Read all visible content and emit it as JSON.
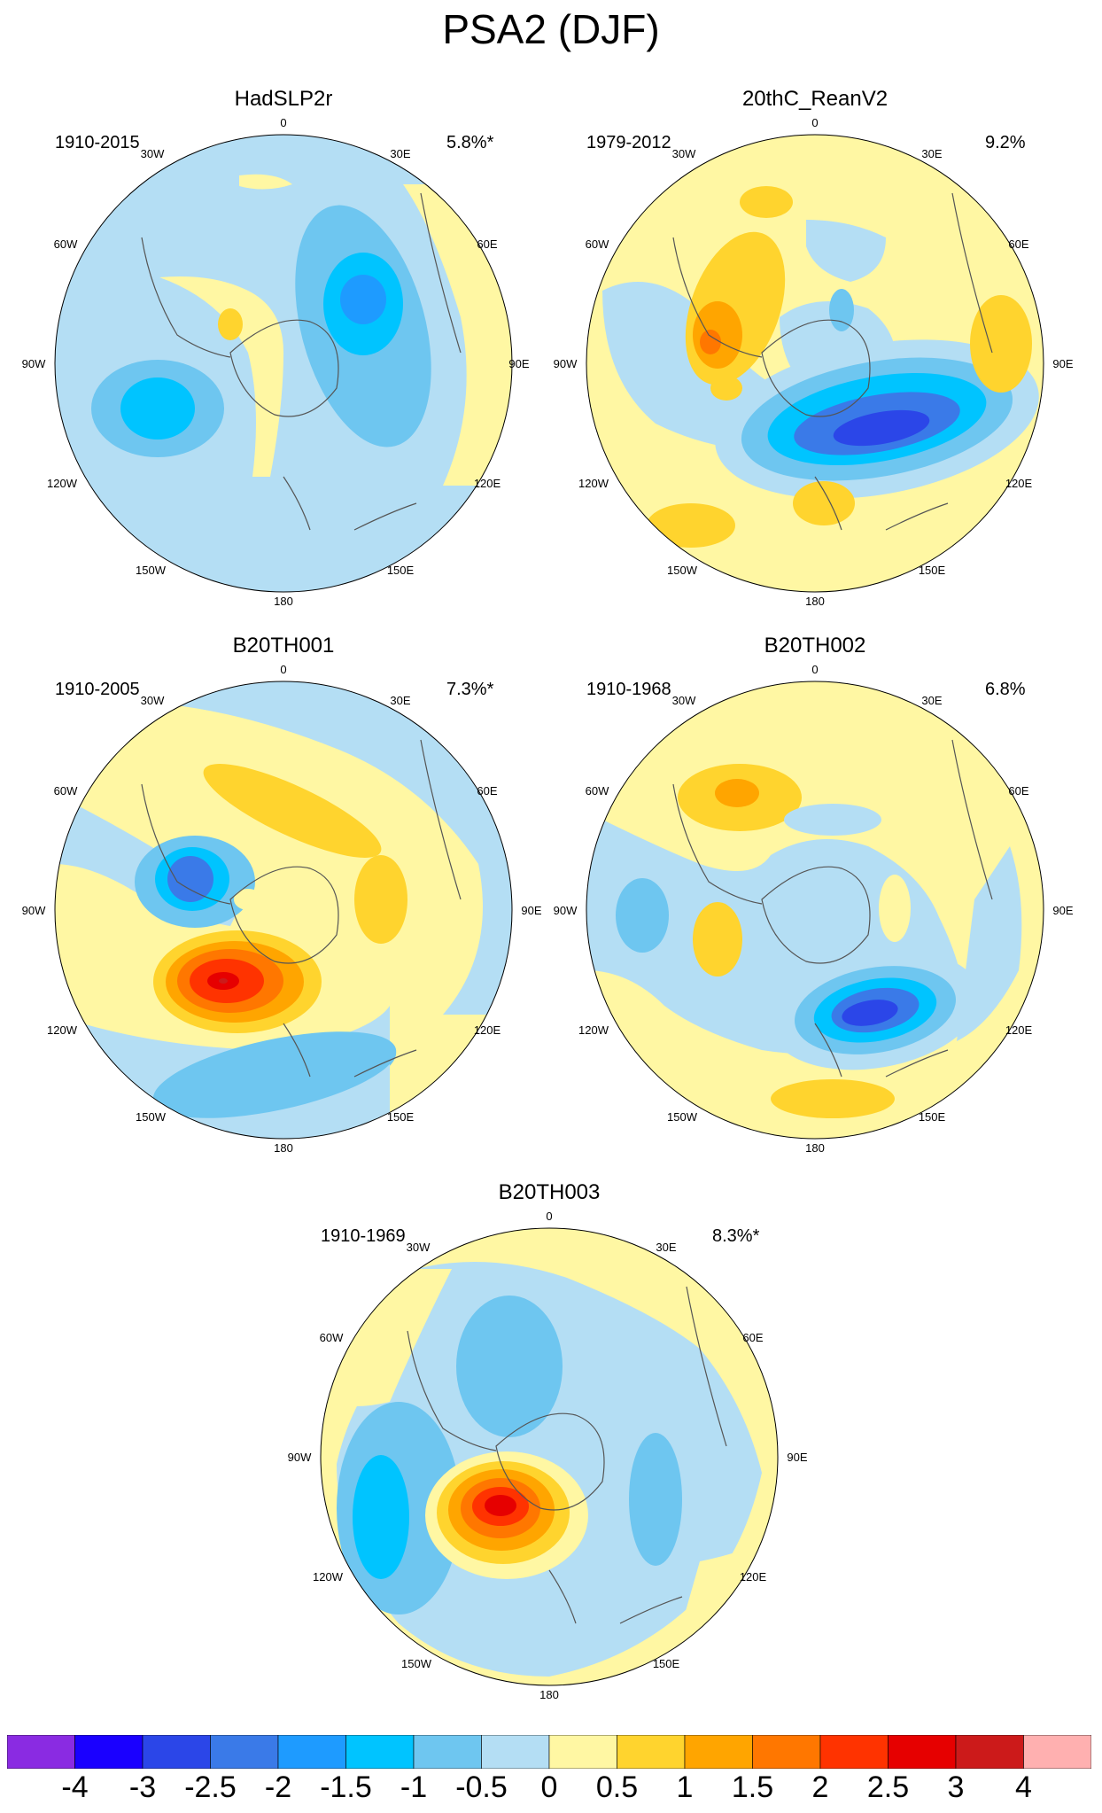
{
  "title": "PSA2 (DJF)",
  "panels": [
    {
      "name": "HadSLP2r",
      "period": "1910-2015",
      "variance": "5.8%*"
    },
    {
      "name": "20thC_ReanV2",
      "period": "1979-2012",
      "variance": "9.2%"
    },
    {
      "name": "B20TH001",
      "period": "1910-2005",
      "variance": "7.3%*"
    },
    {
      "name": "B20TH002",
      "period": "1910-1968",
      "variance": "6.8%"
    },
    {
      "name": "B20TH003",
      "period": "1910-1969",
      "variance": "8.3%*"
    }
  ],
  "lon_labels": {
    "l0": "0",
    "l30e": "30E",
    "l60e": "60E",
    "l90e": "90E",
    "l120e": "120E",
    "l150e": "150E",
    "l180": "180",
    "l150w": "150W",
    "l120w": "120W",
    "l90w": "90W",
    "l60w": "60W",
    "l30w": "30W"
  },
  "colorbar": {
    "colors": [
      "#8a2be2",
      "#1a00ff",
      "#2b46e8",
      "#3a7ae8",
      "#1e9bff",
      "#00c4ff",
      "#6ec6f0",
      "#b4def4",
      "#fff7a3",
      "#ffd42e",
      "#ffa500",
      "#ff7700",
      "#ff3300",
      "#e60000",
      "#cc1a1a",
      "#ffb0b0"
    ],
    "tick_labels": [
      "-4",
      "-3",
      "-2.5",
      "-2",
      "-1.5",
      "-1",
      "-0.5",
      "0",
      "0.5",
      "1",
      "1.5",
      "2",
      "2.5",
      "3",
      "4"
    ]
  }
}
